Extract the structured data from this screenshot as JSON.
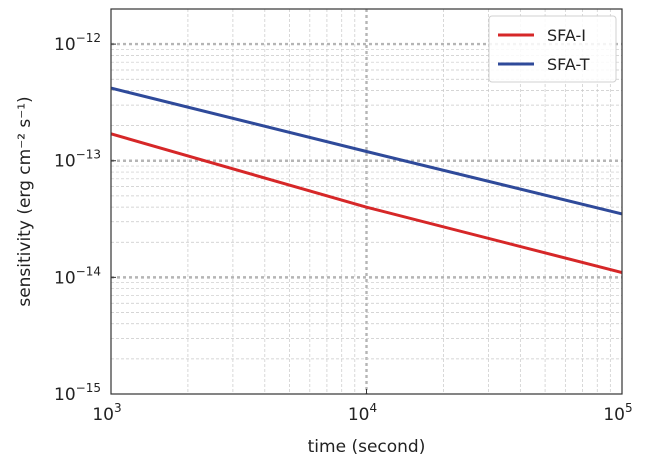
{
  "chart_data": {
    "type": "line",
    "x_scale": "log",
    "y_scale": "log",
    "xlabel": "time (second)",
    "ylabel": "sensitivity (erg cm⁻² s⁻¹)",
    "xlim": [
      1000,
      100000
    ],
    "ylim": [
      1e-15,
      2e-12
    ],
    "grid": true,
    "legend_position": "top-right",
    "x_ticks": [
      {
        "value": 1000,
        "base": "10",
        "exp": "3"
      },
      {
        "value": 10000,
        "base": "10",
        "exp": "4"
      },
      {
        "value": 100000,
        "base": "10",
        "exp": "5"
      }
    ],
    "y_ticks": [
      {
        "value": 1e-15,
        "base": "10",
        "exp": "−15"
      },
      {
        "value": 1e-14,
        "base": "10",
        "exp": "−14"
      },
      {
        "value": 1e-13,
        "base": "10",
        "exp": "−13"
      },
      {
        "value": 1e-12,
        "base": "10",
        "exp": "−12"
      }
    ],
    "series": [
      {
        "name": "SFA-I",
        "color": "#d62728",
        "x": [
          1000,
          10000,
          100000
        ],
        "y": [
          1.7e-13,
          4e-14,
          1.1e-14
        ]
      },
      {
        "name": "SFA-T",
        "color": "#2f4a9a",
        "x": [
          1000,
          10000,
          100000
        ],
        "y": [
          4.2e-13,
          1.2e-13,
          3.5e-14
        ]
      }
    ]
  }
}
